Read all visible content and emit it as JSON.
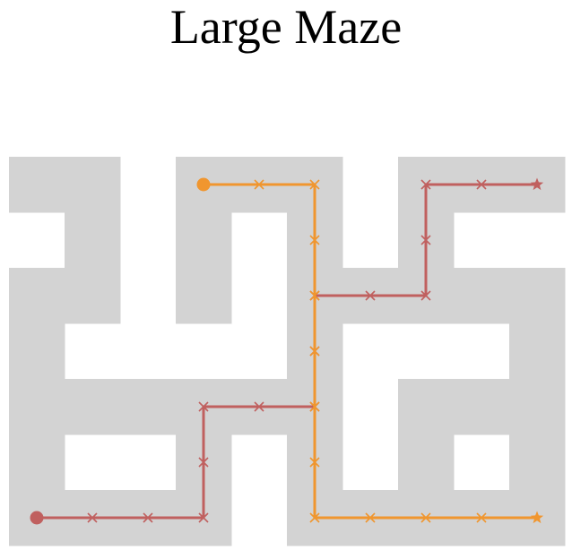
{
  "title": "Large Maze"
}
